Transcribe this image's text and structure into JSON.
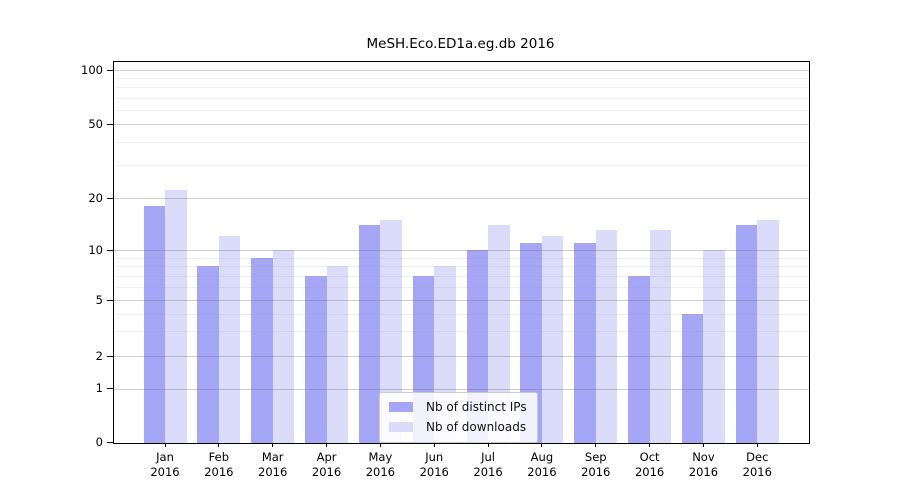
{
  "title": "MeSH.Eco.ED1a.eg.db 2016",
  "chart_data": {
    "type": "bar",
    "title": "MeSH.Eco.ED1a.eg.db 2016",
    "categories": [
      "Jan 2016",
      "Feb 2016",
      "Mar 2016",
      "Apr 2016",
      "May 2016",
      "Jun 2016",
      "Jul 2016",
      "Aug 2016",
      "Sep 2016",
      "Oct 2016",
      "Nov 2016",
      "Dec 2016"
    ],
    "month_names": [
      "Jan",
      "Feb",
      "Mar",
      "Apr",
      "May",
      "Jun",
      "Jul",
      "Aug",
      "Sep",
      "Oct",
      "Nov",
      "Dec"
    ],
    "year": "2016",
    "series": [
      {
        "name": "Nb of distinct IPs",
        "color": "#a6a6f7",
        "values": [
          18,
          8,
          9,
          7,
          14,
          7,
          10,
          11,
          11,
          7,
          4,
          14
        ]
      },
      {
        "name": "Nb of downloads",
        "color": "#dbdbfa",
        "values": [
          22,
          12,
          10,
          8,
          15,
          8,
          14,
          12,
          13,
          13,
          10,
          15
        ]
      }
    ],
    "yscale": "log-like with linear segment near zero",
    "y_ticks": [
      {
        "label": "100",
        "value": 100
      },
      {
        "label": "50",
        "value": 50
      },
      {
        "label": "20",
        "value": 20
      },
      {
        "label": "10",
        "value": 10
      },
      {
        "label": "5",
        "value": 5
      },
      {
        "label": "2",
        "value": 2
      },
      {
        "label": "1",
        "value": 1
      },
      {
        "label": "0",
        "value": 0
      }
    ],
    "y_minor_ticks": [
      3,
      4,
      6,
      7,
      8,
      9,
      30,
      40,
      60,
      70,
      80,
      90
    ],
    "ylim": [
      0,
      130
    ],
    "grid": true,
    "legend_position": "lower center"
  },
  "legend": {
    "items": [
      {
        "label": "Nb of distinct IPs"
      },
      {
        "label": "Nb of downloads"
      }
    ]
  }
}
